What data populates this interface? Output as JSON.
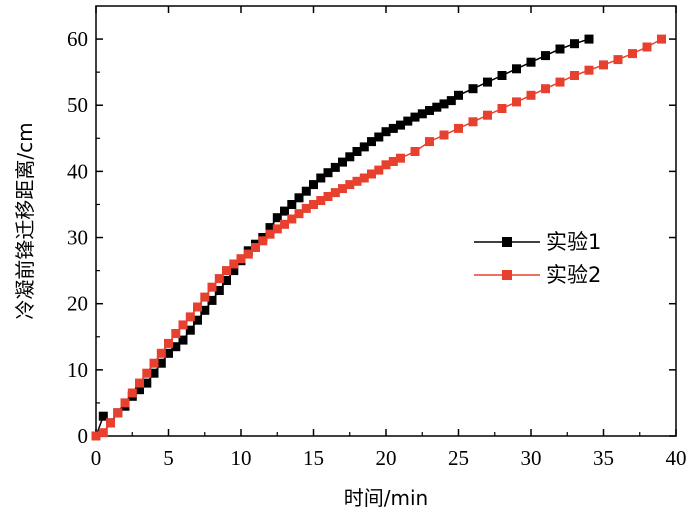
{
  "chart_data": {
    "type": "line",
    "xlabel": "时间/min",
    "ylabel": "冷凝前锋迁移距离/cm",
    "xlim": [
      0,
      40
    ],
    "ylim": [
      0,
      65
    ],
    "xticks": [
      0,
      5,
      10,
      15,
      20,
      25,
      30,
      35,
      40
    ],
    "yticks": [
      0,
      10,
      20,
      30,
      40,
      50,
      60
    ],
    "grid": false,
    "legend_position": "center-right",
    "series": [
      {
        "name": "实验1",
        "color": "#000000",
        "marker": "square",
        "x": [
          0.0,
          0.5,
          1.0,
          1.5,
          2.0,
          2.5,
          3.0,
          3.5,
          4.0,
          4.5,
          5.0,
          5.5,
          6.0,
          6.5,
          7.0,
          7.5,
          8.0,
          8.5,
          9.0,
          9.5,
          10.0,
          10.5,
          11.0,
          11.5,
          12.0,
          12.5,
          13.0,
          13.5,
          14.0,
          14.5,
          15.0,
          15.5,
          16.0,
          16.5,
          17.0,
          17.5,
          18.0,
          18.5,
          19.0,
          19.5,
          20.0,
          20.5,
          21.0,
          21.5,
          22.0,
          22.5,
          23.0,
          23.5,
          24.0,
          24.5,
          25.0,
          26.0,
          27.0,
          28.0,
          29.0,
          30.0,
          31.0,
          32.0,
          33.0,
          34.0
        ],
        "y": [
          0.0,
          3.0,
          2.0,
          3.5,
          4.5,
          6.0,
          7.0,
          8.0,
          9.5,
          11.0,
          12.5,
          13.5,
          14.5,
          16.0,
          17.5,
          19.0,
          20.5,
          22.0,
          23.5,
          25.0,
          26.5,
          28.0,
          29.0,
          30.0,
          31.5,
          33.0,
          34.0,
          35.0,
          36.0,
          37.0,
          38.0,
          39.0,
          39.8,
          40.6,
          41.4,
          42.2,
          43.0,
          43.7,
          44.5,
          45.2,
          46.0,
          46.5,
          47.0,
          47.6,
          48.2,
          48.7,
          49.2,
          49.7,
          50.2,
          50.7,
          51.5,
          52.5,
          53.5,
          54.5,
          55.5,
          56.5,
          57.5,
          58.5,
          59.3,
          60.0
        ]
      },
      {
        "name": "实验2",
        "color": "#e8402e",
        "marker": "square",
        "x": [
          0.0,
          0.5,
          1.0,
          1.5,
          2.0,
          2.5,
          3.0,
          3.5,
          4.0,
          4.5,
          5.0,
          5.5,
          6.0,
          6.5,
          7.0,
          7.5,
          8.0,
          8.5,
          9.0,
          9.5,
          10.0,
          10.5,
          11.0,
          11.5,
          12.0,
          12.5,
          13.0,
          13.5,
          14.0,
          14.5,
          15.0,
          15.5,
          16.0,
          16.5,
          17.0,
          17.5,
          18.0,
          18.5,
          19.0,
          19.5,
          20.0,
          20.5,
          21.0,
          22.0,
          23.0,
          24.0,
          25.0,
          26.0,
          27.0,
          28.0,
          29.0,
          30.0,
          31.0,
          32.0,
          33.0,
          34.0,
          35.0,
          36.0,
          37.0,
          38.0,
          39.0
        ],
        "y": [
          0.0,
          0.5,
          2.0,
          3.5,
          5.0,
          6.5,
          8.0,
          9.5,
          11.0,
          12.5,
          14.0,
          15.5,
          16.8,
          18.0,
          19.5,
          21.0,
          22.5,
          23.8,
          25.0,
          26.0,
          26.8,
          27.5,
          28.5,
          29.5,
          30.5,
          31.3,
          32.0,
          32.8,
          33.6,
          34.4,
          35.0,
          35.6,
          36.2,
          36.8,
          37.4,
          38.0,
          38.5,
          39.0,
          39.6,
          40.2,
          41.0,
          41.5,
          42.0,
          43.0,
          44.5,
          45.5,
          46.5,
          47.5,
          48.5,
          49.5,
          50.5,
          51.5,
          52.5,
          53.5,
          54.5,
          55.3,
          56.1,
          56.9,
          57.8,
          58.8,
          60.0
        ]
      }
    ]
  }
}
